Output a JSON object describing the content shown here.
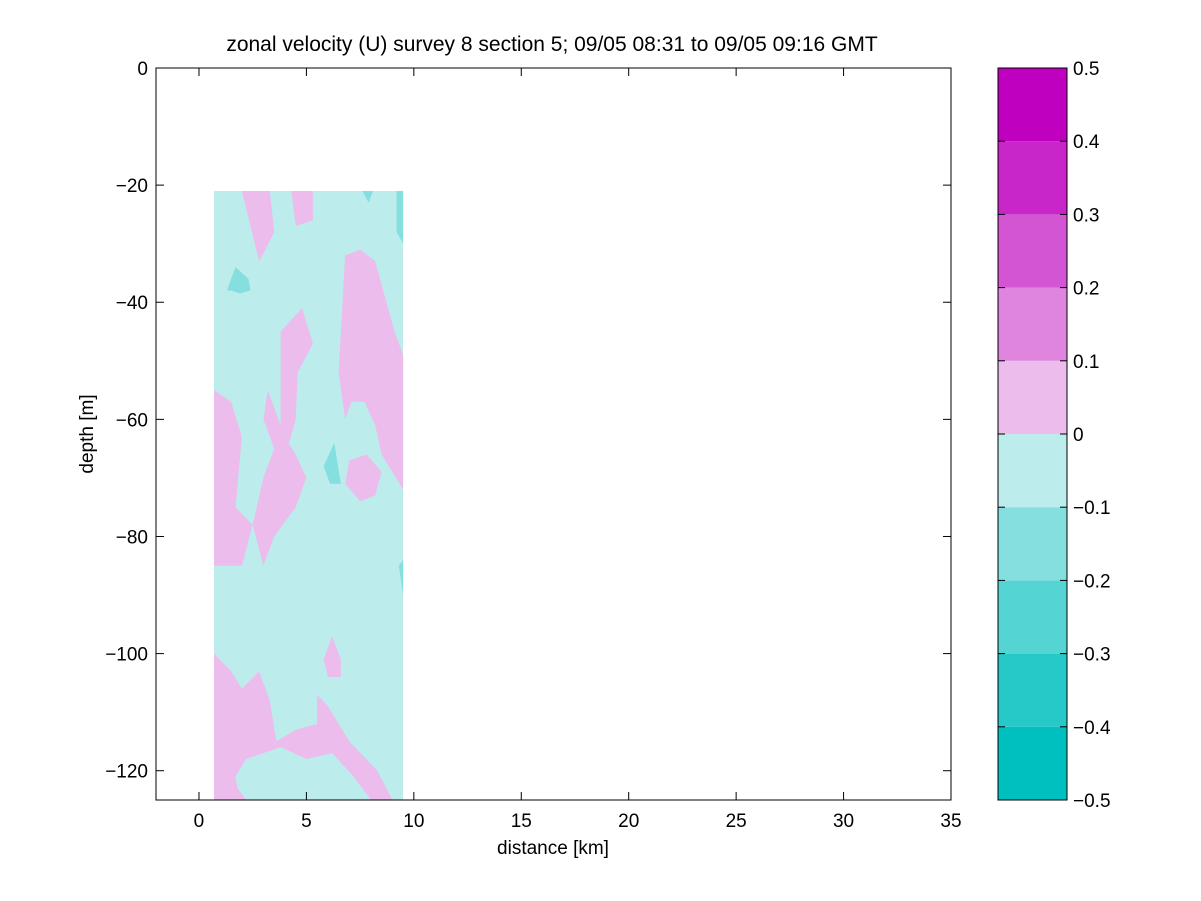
{
  "chart_data": {
    "type": "heatmap",
    "subtype": "filled-contour",
    "title": "zonal velocity (U) survey 8 section 5; 09/05 08:31 to 09/05 09:16 GMT",
    "xlabel": "distance [km]",
    "ylabel": "depth [m]",
    "xlim": [
      -2,
      35
    ],
    "ylim": [
      -125,
      0
    ],
    "x_ticks": [
      0,
      5,
      10,
      15,
      20,
      25,
      30,
      35
    ],
    "y_ticks": [
      0,
      -20,
      -40,
      -60,
      -80,
      -100,
      -120
    ],
    "x_tick_labels": [
      "0",
      "5",
      "10",
      "15",
      "20",
      "25",
      "30",
      "35"
    ],
    "y_tick_labels": [
      "0",
      "−20",
      "−40",
      "−60",
      "−80",
      "−100",
      "−120"
    ],
    "data_extent": {
      "x": [
        0.7,
        9.5
      ],
      "y": [
        -125,
        -21
      ]
    },
    "background_level_color": "#bdecec",
    "colorbar": {
      "min": -0.5,
      "max": 0.5,
      "levels": [
        -0.5,
        -0.4,
        -0.3,
        -0.2,
        -0.1,
        0,
        0.1,
        0.2,
        0.3,
        0.4,
        0.5
      ],
      "tick_labels": [
        "−0.5",
        "−0.4",
        "−0.3",
        "−0.2",
        "−0.1",
        "0",
        "0.1",
        "0.2",
        "0.3",
        "0.4",
        "0.5"
      ],
      "colors": [
        "#00bfbf",
        "#26c8c8",
        "#55d4d4",
        "#85dfdf",
        "#bdecec",
        "#ecbdec",
        "#df85df",
        "#d455d4",
        "#c826c8",
        "#bf00bf"
      ]
    },
    "patches": [
      {
        "level": 0.05,
        "color": "#ecbdec",
        "points": [
          [
            0.7,
            -85
          ],
          [
            0.7,
            -55
          ],
          [
            1.5,
            -57
          ],
          [
            2,
            -63
          ],
          [
            1.7,
            -75
          ],
          [
            2.5,
            -78
          ],
          [
            3,
            -85
          ],
          [
            3.5,
            -80
          ],
          [
            4.5,
            -75
          ],
          [
            5,
            -70
          ],
          [
            4.5,
            -66
          ],
          [
            4,
            -63
          ],
          [
            3.2,
            -55
          ],
          [
            3,
            -60
          ],
          [
            3.5,
            -65
          ],
          [
            3,
            -70
          ],
          [
            2.5,
            -78
          ],
          [
            2,
            -85
          ],
          [
            1,
            -85
          ]
        ]
      },
      {
        "level": 0.05,
        "color": "#ecbdec",
        "points": [
          [
            3.8,
            -62
          ],
          [
            3.8,
            -45
          ],
          [
            4.8,
            -41
          ],
          [
            5.3,
            -47
          ],
          [
            4.6,
            -52
          ],
          [
            4.5,
            -60
          ],
          [
            4.2,
            -64
          ]
        ]
      },
      {
        "level": 0.05,
        "color": "#ecbdec",
        "points": [
          [
            6.5,
            -52
          ],
          [
            6.8,
            -32
          ],
          [
            7.5,
            -31
          ],
          [
            8.2,
            -33
          ],
          [
            9.1,
            -45
          ],
          [
            9.5,
            -49
          ],
          [
            9.5,
            -72
          ],
          [
            8.5,
            -66
          ],
          [
            8.2,
            -61
          ],
          [
            7.7,
            -57
          ],
          [
            7.1,
            -57
          ],
          [
            6.8,
            -60
          ]
        ]
      },
      {
        "level": 0.05,
        "color": "#ecbdec",
        "points": [
          [
            7,
            -67
          ],
          [
            7.8,
            -66
          ],
          [
            8.5,
            -69
          ],
          [
            8.2,
            -73
          ],
          [
            7.5,
            -74
          ],
          [
            6.8,
            -71
          ]
        ]
      },
      {
        "level": 0.05,
        "color": "#ecbdec",
        "points": [
          [
            2,
            -21
          ],
          [
            3.3,
            -21
          ],
          [
            3.5,
            -28
          ],
          [
            3.1,
            -31
          ],
          [
            2.8,
            -33
          ],
          [
            2.6,
            -30
          ]
        ]
      },
      {
        "level": 0.05,
        "color": "#ecbdec",
        "points": [
          [
            4.3,
            -21
          ],
          [
            5.3,
            -21
          ],
          [
            5.3,
            -26
          ],
          [
            4.5,
            -27
          ]
        ]
      },
      {
        "level": 0.05,
        "color": "#ecbdec",
        "points": [
          [
            5.8,
            -101
          ],
          [
            6.2,
            -97
          ],
          [
            6.6,
            -101
          ],
          [
            6.6,
            -104
          ],
          [
            6,
            -104
          ]
        ]
      },
      {
        "level": 0.05,
        "color": "#ecbdec",
        "points": [
          [
            0.7,
            -125
          ],
          [
            0.7,
            -100
          ],
          [
            1.5,
            -103
          ],
          [
            2,
            -106
          ],
          [
            2.8,
            -103
          ],
          [
            3.3,
            -108
          ],
          [
            3.6,
            -115
          ],
          [
            4.5,
            -113
          ],
          [
            5.5,
            -112
          ],
          [
            5.5,
            -107
          ],
          [
            6,
            -109
          ],
          [
            7,
            -115
          ],
          [
            8.3,
            -120
          ],
          [
            9,
            -125
          ],
          [
            8,
            -125
          ],
          [
            7.2,
            -121
          ],
          [
            6.2,
            -117
          ],
          [
            5,
            -118
          ],
          [
            3.8,
            -116
          ],
          [
            2.2,
            -118
          ],
          [
            1.7,
            -121
          ],
          [
            1.8,
            -123
          ],
          [
            2.2,
            -125
          ]
        ]
      },
      {
        "level": -0.15,
        "color": "#85dfdf",
        "points": [
          [
            1.3,
            -38
          ],
          [
            1.7,
            -34
          ],
          [
            2.3,
            -36
          ],
          [
            2.4,
            -38
          ],
          [
            1.9,
            -38.5
          ],
          [
            1.5,
            -38
          ]
        ]
      },
      {
        "level": -0.15,
        "color": "#85dfdf",
        "points": [
          [
            7.6,
            -21
          ],
          [
            8.1,
            -21
          ],
          [
            7.9,
            -23
          ]
        ]
      },
      {
        "level": -0.15,
        "color": "#85dfdf",
        "points": [
          [
            9.2,
            -21
          ],
          [
            9.5,
            -21
          ],
          [
            9.5,
            -30
          ],
          [
            9.2,
            -28
          ]
        ]
      },
      {
        "level": -0.15,
        "color": "#85dfdf",
        "points": [
          [
            5.8,
            -68
          ],
          [
            6.3,
            -64
          ],
          [
            6.6,
            -71
          ],
          [
            6.1,
            -71
          ]
        ]
      },
      {
        "level": -0.15,
        "color": "#85dfdf",
        "points": [
          [
            9.3,
            -85
          ],
          [
            9.5,
            -84
          ],
          [
            9.5,
            -90
          ]
        ]
      }
    ]
  }
}
